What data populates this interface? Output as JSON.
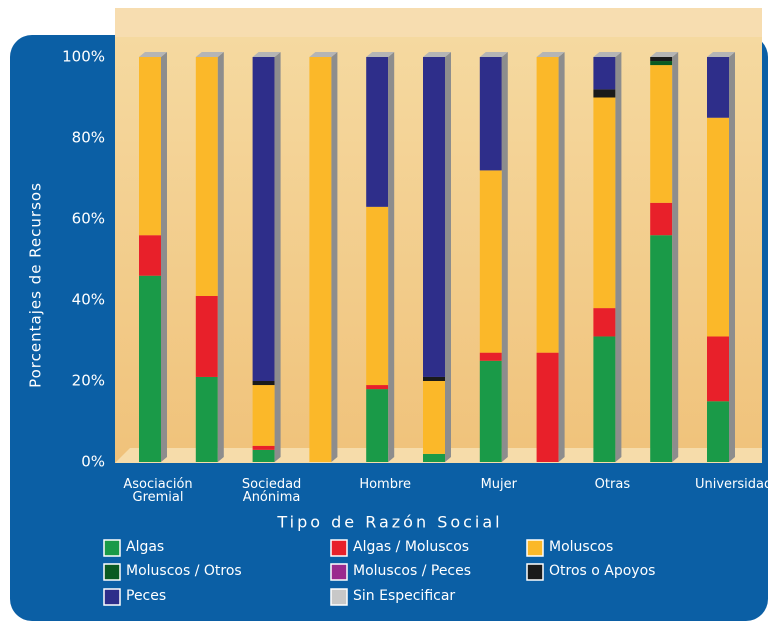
{
  "chart_data": {
    "type": "stacked_bar",
    "x_label": "Tipo de Razón Social",
    "y_label": "Porcentajes de Recursos",
    "categories": [
      "Asociación Gremial",
      null,
      "Sociedad Anónima",
      null,
      "Hombre",
      null,
      "Mujer",
      null,
      "Otras",
      null,
      "Universidades"
    ],
    "series": [
      {
        "name": "Algas",
        "color": "#1a9a48",
        "values": [
          46,
          21,
          3,
          0,
          18,
          2,
          25,
          0,
          31,
          56,
          15
        ]
      },
      {
        "name": "Algas / Moluscos",
        "color": "#e8202a",
        "values": [
          10,
          20,
          1,
          0,
          1,
          0,
          2,
          27,
          7,
          8,
          16
        ]
      },
      {
        "name": "Moluscos",
        "color": "#fbb829",
        "values": [
          44,
          59,
          15,
          100,
          44,
          18,
          45,
          73,
          52,
          34,
          54
        ]
      },
      {
        "name": "Moluscos / Otros",
        "color": "#0a5a22",
        "values": [
          0,
          0,
          0,
          0,
          0,
          0,
          0,
          0,
          0,
          1,
          0
        ]
      },
      {
        "name": "Moluscos / Peces",
        "color": "#9b2a8e",
        "values": [
          0,
          0,
          0,
          0,
          0,
          0,
          0,
          0,
          0,
          0,
          0
        ]
      },
      {
        "name": "Otros o Apoyos",
        "color": "#1a1a1a",
        "values": [
          0,
          0,
          1,
          0,
          0,
          1,
          0,
          0,
          2,
          1,
          0
        ]
      },
      {
        "name": "Peces",
        "color": "#2e2e8a",
        "values": [
          0,
          0,
          80,
          0,
          37,
          79,
          28,
          0,
          8,
          0,
          15
        ]
      },
      {
        "name": "Sin Especificar",
        "color": "#c8c8c8",
        "values": [
          0,
          0,
          0,
          0,
          0,
          0,
          0,
          0,
          0,
          0,
          0
        ]
      }
    ],
    "ylim": [
      0,
      100
    ],
    "yticks": [
      {
        "value": 0,
        "label": "0%"
      },
      {
        "value": 20,
        "label": "20%"
      },
      {
        "value": 40,
        "label": "40%"
      },
      {
        "value": 60,
        "label": "60%"
      },
      {
        "value": 80,
        "label": "80%"
      },
      {
        "value": 100,
        "label": "100%"
      }
    ]
  }
}
